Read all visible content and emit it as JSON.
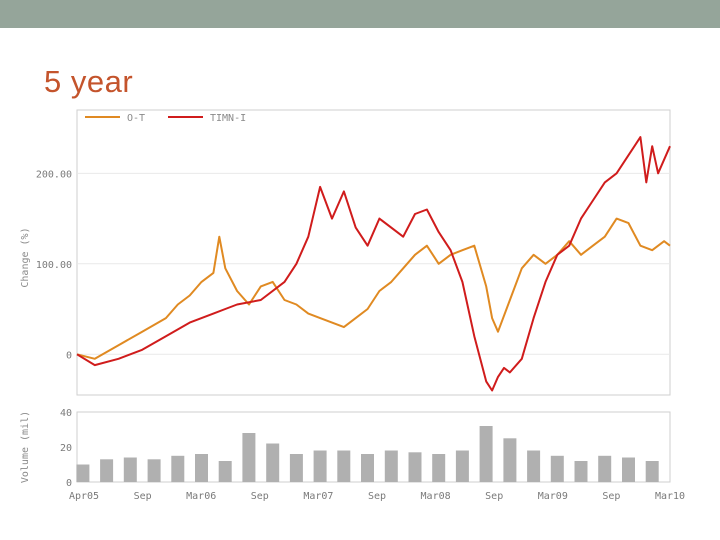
{
  "slide": {
    "title": "5 year"
  },
  "colors": {
    "topbar": "#95a59a",
    "title": "#c4542c",
    "ot": "#e08a22",
    "timn": "#d01c1c",
    "volume": "#b0b0b0",
    "frame": "#cfcfcf"
  },
  "chart_data": [
    {
      "type": "line",
      "ylabel": "Change (%)",
      "ylim": [
        -45,
        270
      ],
      "yticks": [
        0,
        100,
        200
      ],
      "ytick_labels": [
        "0",
        "100.00",
        "200.00"
      ],
      "grid": true,
      "legend_position": "top-left",
      "series": [
        {
          "name": "O-T",
          "color": "#e08a22",
          "x": [
            2005.25,
            2005.4,
            2005.6,
            2005.8,
            2006.0,
            2006.1,
            2006.2,
            2006.3,
            2006.4,
            2006.45,
            2006.5,
            2006.6,
            2006.7,
            2006.8,
            2006.9,
            2007.0,
            2007.1,
            2007.2,
            2007.3,
            2007.4,
            2007.5,
            2007.6,
            2007.7,
            2007.8,
            2007.9,
            2008.0,
            2008.1,
            2008.2,
            2008.3,
            2008.4,
            2008.5,
            2008.6,
            2008.7,
            2008.75,
            2008.8,
            2008.9,
            2009.0,
            2009.1,
            2009.2,
            2009.3,
            2009.4,
            2009.5,
            2009.6,
            2009.7,
            2009.8,
            2009.9,
            2010.0,
            2010.1,
            2010.2,
            2010.25
          ],
          "y": [
            0,
            -5,
            10,
            25,
            40,
            55,
            65,
            80,
            90,
            130,
            95,
            70,
            55,
            75,
            80,
            60,
            55,
            45,
            40,
            35,
            30,
            40,
            50,
            70,
            80,
            95,
            110,
            120,
            100,
            110,
            115,
            120,
            75,
            40,
            25,
            60,
            95,
            110,
            100,
            110,
            125,
            110,
            120,
            130,
            150,
            145,
            120,
            115,
            125,
            120
          ]
        },
        {
          "name": "TIMN-I",
          "color": "#d01c1c",
          "x": [
            2005.25,
            2005.4,
            2005.6,
            2005.8,
            2006.0,
            2006.2,
            2006.4,
            2006.5,
            2006.6,
            2006.8,
            2007.0,
            2007.1,
            2007.2,
            2007.3,
            2007.4,
            2007.5,
            2007.6,
            2007.7,
            2007.8,
            2008.0,
            2008.1,
            2008.2,
            2008.3,
            2008.4,
            2008.5,
            2008.6,
            2008.7,
            2008.75,
            2008.8,
            2008.85,
            2008.9,
            2009.0,
            2009.1,
            2009.2,
            2009.3,
            2009.4,
            2009.5,
            2009.6,
            2009.7,
            2009.8,
            2009.9,
            2010.0,
            2010.05,
            2010.1,
            2010.15,
            2010.25
          ],
          "y": [
            0,
            -12,
            -5,
            5,
            20,
            35,
            45,
            50,
            55,
            60,
            80,
            100,
            130,
            185,
            150,
            180,
            140,
            120,
            150,
            130,
            155,
            160,
            135,
            115,
            80,
            20,
            -30,
            -40,
            -25,
            -15,
            -20,
            -5,
            40,
            80,
            110,
            120,
            150,
            170,
            190,
            200,
            220,
            240,
            190,
            230,
            200,
            230
          ]
        }
      ]
    },
    {
      "type": "bar",
      "ylabel": "Volume (mil)",
      "ylim": [
        0,
        40
      ],
      "yticks": [
        0,
        20,
        40
      ],
      "ytick_labels": [
        "0",
        "20",
        "40"
      ],
      "x_tick_labels": [
        "Apr05",
        "Sep",
        "Mar06",
        "Sep",
        "Mar07",
        "Sep",
        "Mar08",
        "Sep",
        "Mar09",
        "Sep",
        "Mar10"
      ],
      "series": [
        {
          "name": "Volume",
          "color": "#b0b0b0",
          "x": [
            2005.3,
            2005.5,
            2005.7,
            2005.9,
            2006.1,
            2006.3,
            2006.5,
            2006.7,
            2006.9,
            2007.1,
            2007.3,
            2007.5,
            2007.7,
            2007.9,
            2008.1,
            2008.3,
            2008.5,
            2008.7,
            2008.9,
            2009.1,
            2009.3,
            2009.5,
            2009.7,
            2009.9,
            2010.1
          ],
          "values": [
            10,
            13,
            14,
            13,
            15,
            16,
            12,
            28,
            22,
            16,
            18,
            18,
            16,
            18,
            17,
            16,
            18,
            32,
            25,
            18,
            15,
            12,
            15,
            14,
            12
          ]
        }
      ]
    }
  ]
}
